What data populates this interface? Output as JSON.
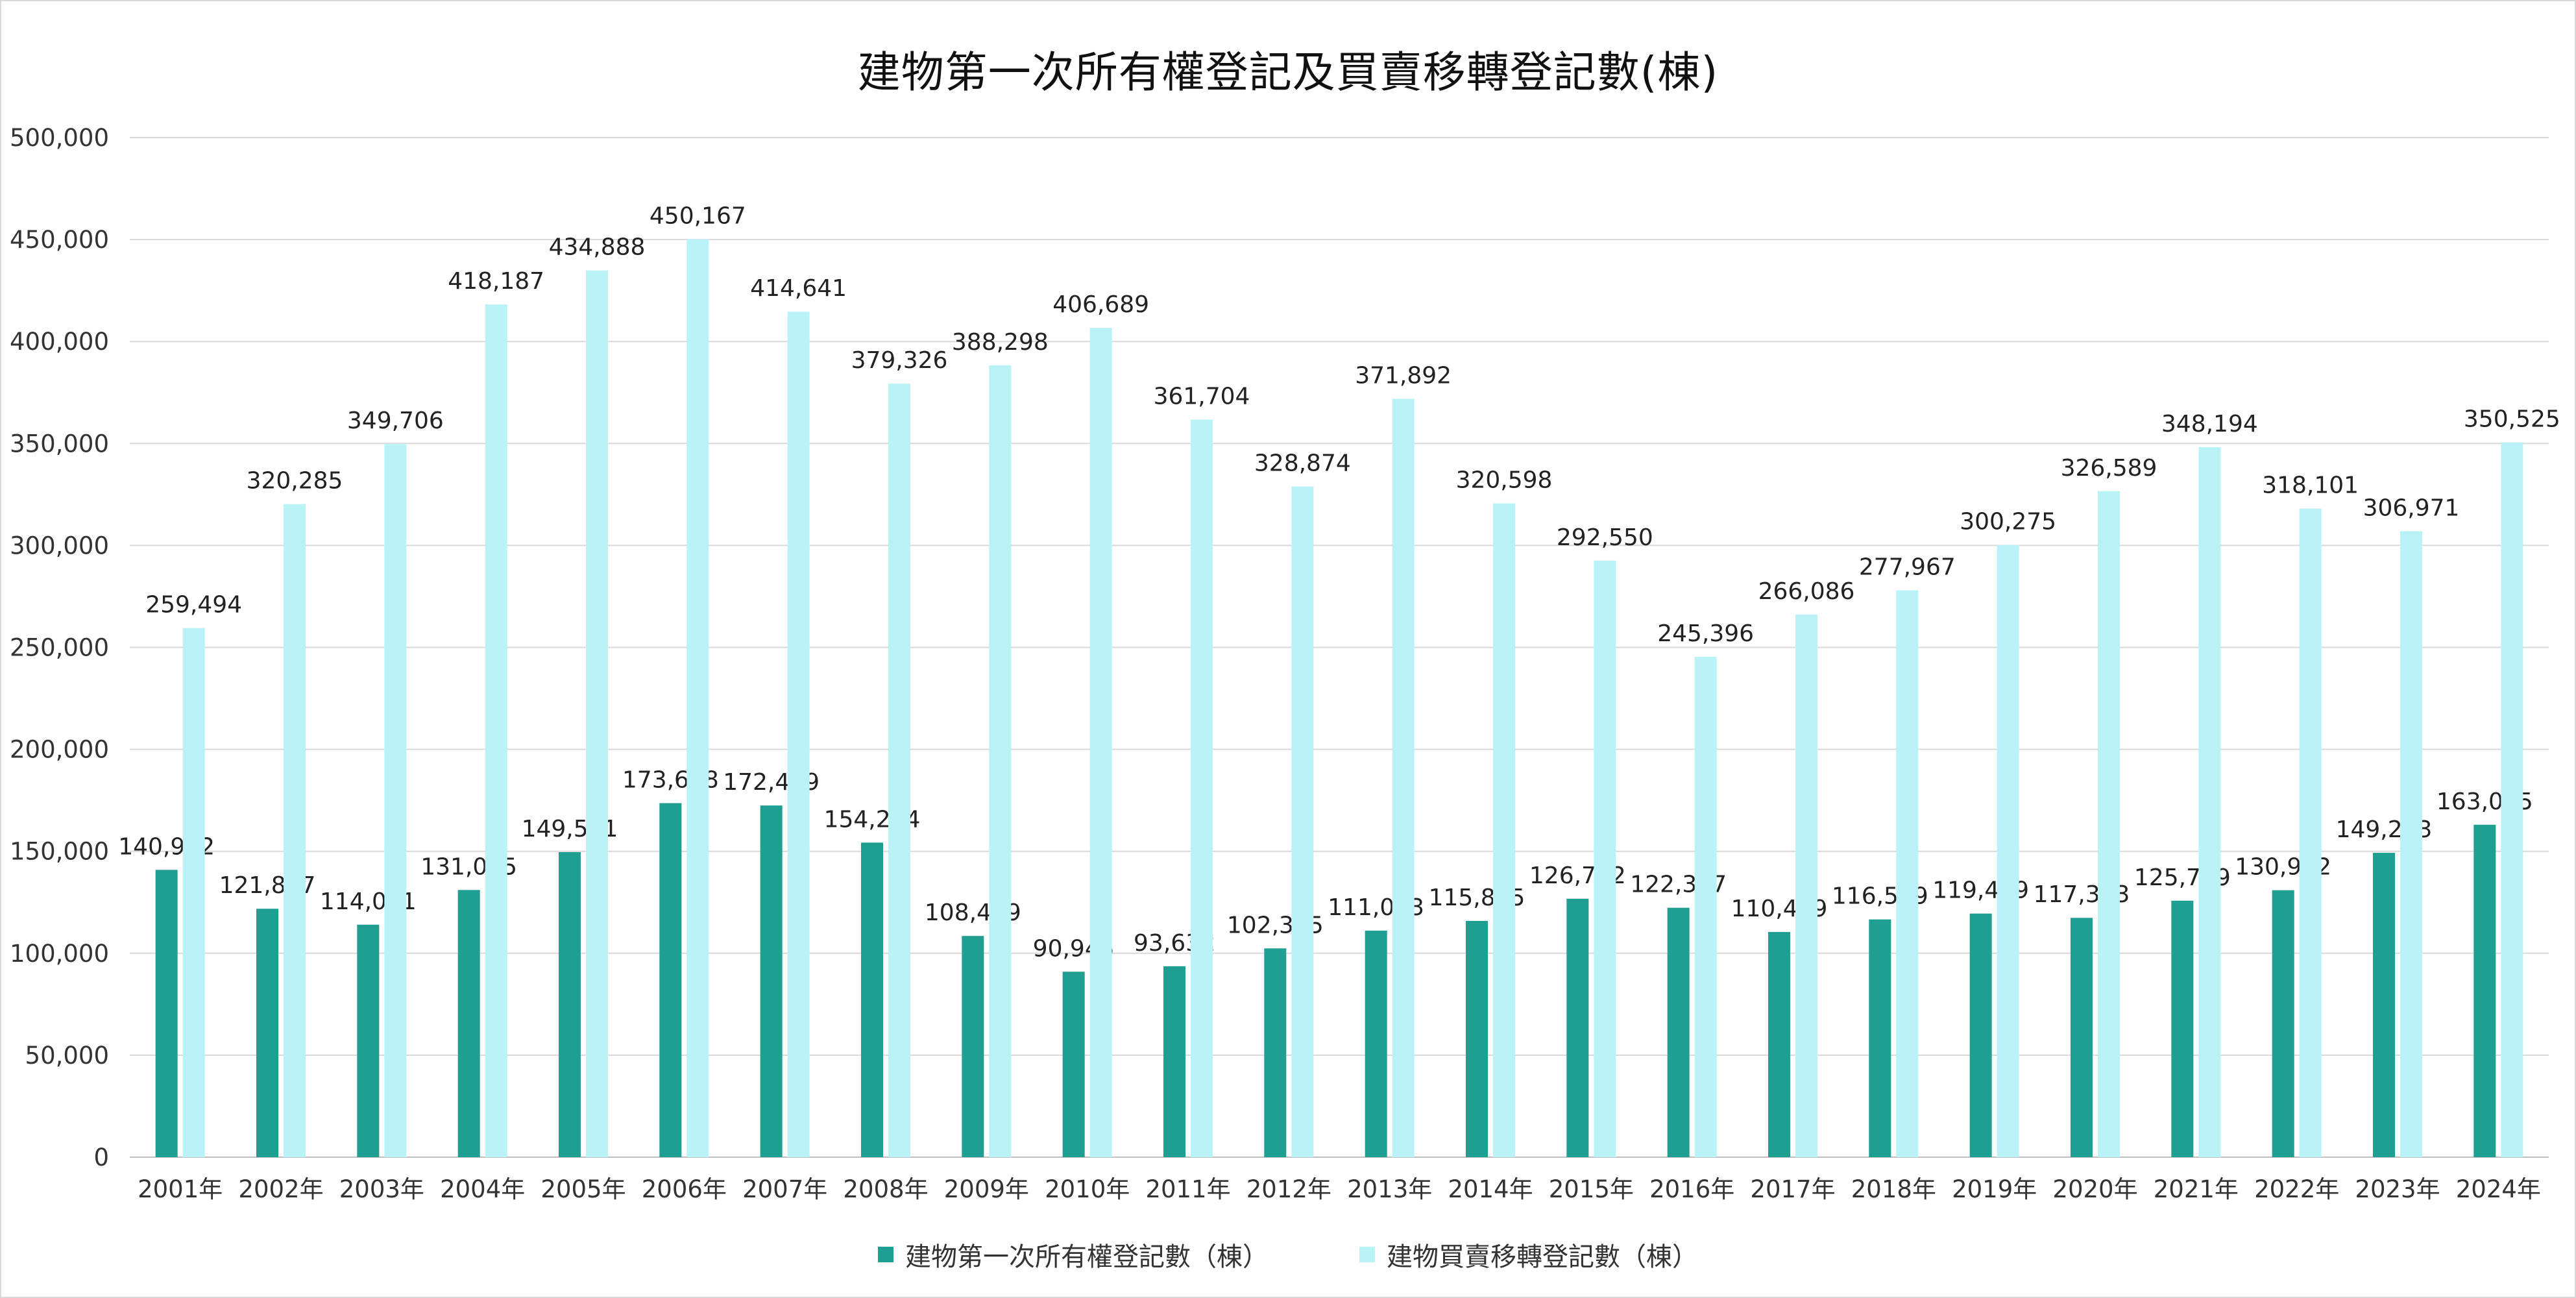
{
  "title": "建物第一次所有權登記及買賣移轉登記數(棟)",
  "colors": {
    "series1": "#1f9e92",
    "series2": "#b9f3f8",
    "grid": "#d9d9d9",
    "axis": "#bfbfbf"
  },
  "chart_data": {
    "type": "bar",
    "title": "建物第一次所有權登記及買賣移轉登記數(棟)",
    "categories": [
      "2001年",
      "2002年",
      "2003年",
      "2004年",
      "2005年",
      "2006年",
      "2007年",
      "2008年",
      "2009年",
      "2010年",
      "2011年",
      "2012年",
      "2013年",
      "2014年",
      "2015年",
      "2016年",
      "2017年",
      "2018年",
      "2019年",
      "2020年",
      "2021年",
      "2022年",
      "2023年",
      "2024年"
    ],
    "series": [
      {
        "name": "建物第一次所有權登記數（棟）",
        "color": "#1f9e92",
        "values": [
          140902,
          121827,
          114011,
          131025,
          149591,
          173608,
          172459,
          154254,
          108469,
          90945,
          93632,
          102385,
          111093,
          115865,
          126742,
          122307,
          110419,
          116589,
          119459,
          117363,
          125779,
          130922,
          149253,
          163025
        ]
      },
      {
        "name": "建物買賣移轉登記數（棟）",
        "color": "#b9f3f8",
        "values": [
          259494,
          320285,
          349706,
          418187,
          434888,
          450167,
          414641,
          379326,
          388298,
          406689,
          361704,
          328874,
          371892,
          320598,
          292550,
          245396,
          266086,
          277967,
          300275,
          326589,
          348194,
          318101,
          306971,
          350525
        ]
      }
    ],
    "ylim": [
      0,
      500000
    ],
    "yticks": [
      "0",
      "50,000",
      "100,000",
      "150,000",
      "200,000",
      "250,000",
      "300,000",
      "350,000",
      "400,000",
      "450,000",
      "500,000"
    ],
    "grid": true,
    "legend_position": "bottom",
    "data_labels": true
  }
}
